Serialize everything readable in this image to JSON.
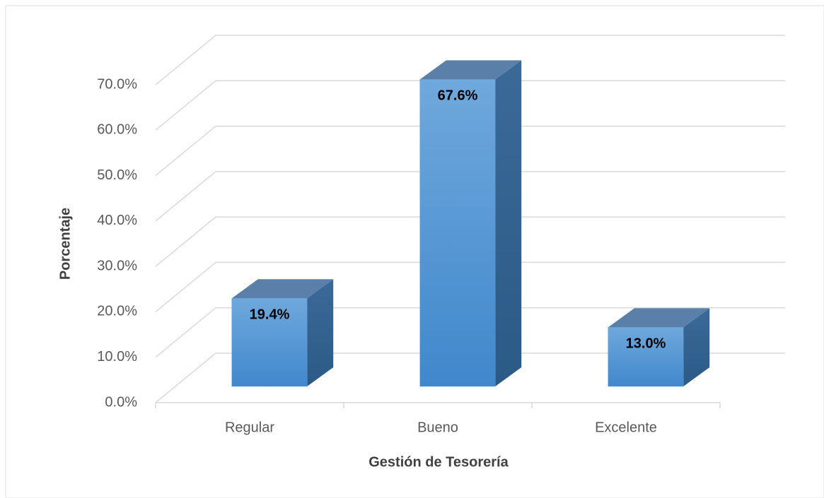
{
  "chart_data": {
    "type": "bar3d",
    "categories": [
      "Regular",
      "Bueno",
      "Excelente"
    ],
    "values": [
      19.4,
      67.6,
      13.0
    ],
    "value_labels": [
      "19.4%",
      "67.6%",
      "13.0%"
    ],
    "color": "#5b9bd5",
    "ylim": [
      0,
      70
    ],
    "yticks": [
      {
        "value": 0,
        "label": "0.0%"
      },
      {
        "value": 10,
        "label": "10.0%"
      },
      {
        "value": 20,
        "label": "20.0%"
      },
      {
        "value": 30,
        "label": "30.0%"
      },
      {
        "value": 40,
        "label": "40.0%"
      },
      {
        "value": 50,
        "label": "50.0%"
      },
      {
        "value": 60,
        "label": "60.0%"
      },
      {
        "value": 70,
        "label": "70.0%"
      }
    ],
    "y_label": "Porcentaje",
    "x_label": "Gestión de Tesorería",
    "grid": true
  }
}
